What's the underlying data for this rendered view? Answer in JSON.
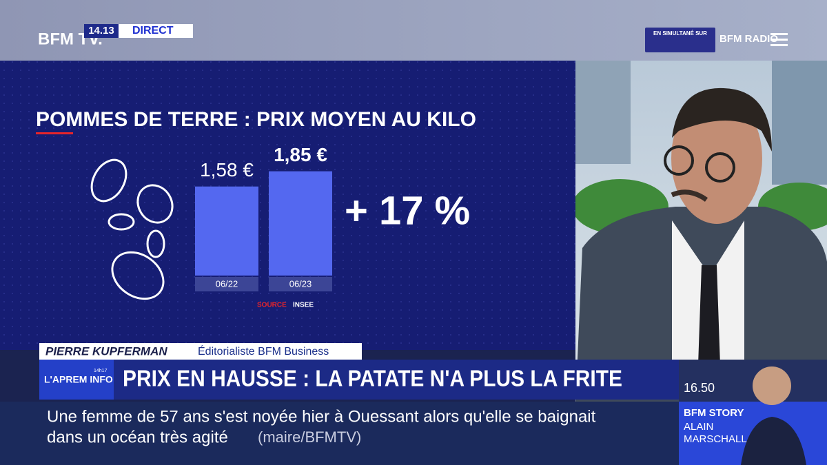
{
  "header": {
    "brand": "BFM TV.",
    "time": "14.13",
    "live": "DIRECT",
    "simulcast": "EN SIMULTANÉ SUR",
    "radio": "BFM RADIO"
  },
  "chart_data": {
    "type": "bar",
    "title": "POMMES DE TERRE : PRIX MOYEN AU KILO",
    "categories": [
      "06/22",
      "06/23"
    ],
    "values": [
      1.58,
      1.85
    ],
    "value_labels": [
      "1,58 €",
      "1,85 €"
    ],
    "color": "#5468f0",
    "ylim": [
      0,
      2.2
    ],
    "annotation": "+ 17 %",
    "source_label": "SOURCE",
    "source": "INSEE"
  },
  "lower_third": {
    "name": "PIERRE KUPFERMAN",
    "role": "Éditorialiste BFM Business",
    "show": "L'APREM INFO",
    "show_time": "14h17",
    "headline": "PRIX EN HAUSSE : LA PATATE N'A PLUS LA FRITE"
  },
  "ticker": {
    "text_line1": "Une femme de 57 ans s'est noyée hier à Ouessant alors qu'elle se baignait",
    "text_line2": "dans un océan très agité",
    "source": "(maire/BFMTV)"
  },
  "next_show": {
    "time": "16.50",
    "title": "BFM STORY",
    "host_first": "ALAIN",
    "host_last": "MARSCHALL"
  }
}
